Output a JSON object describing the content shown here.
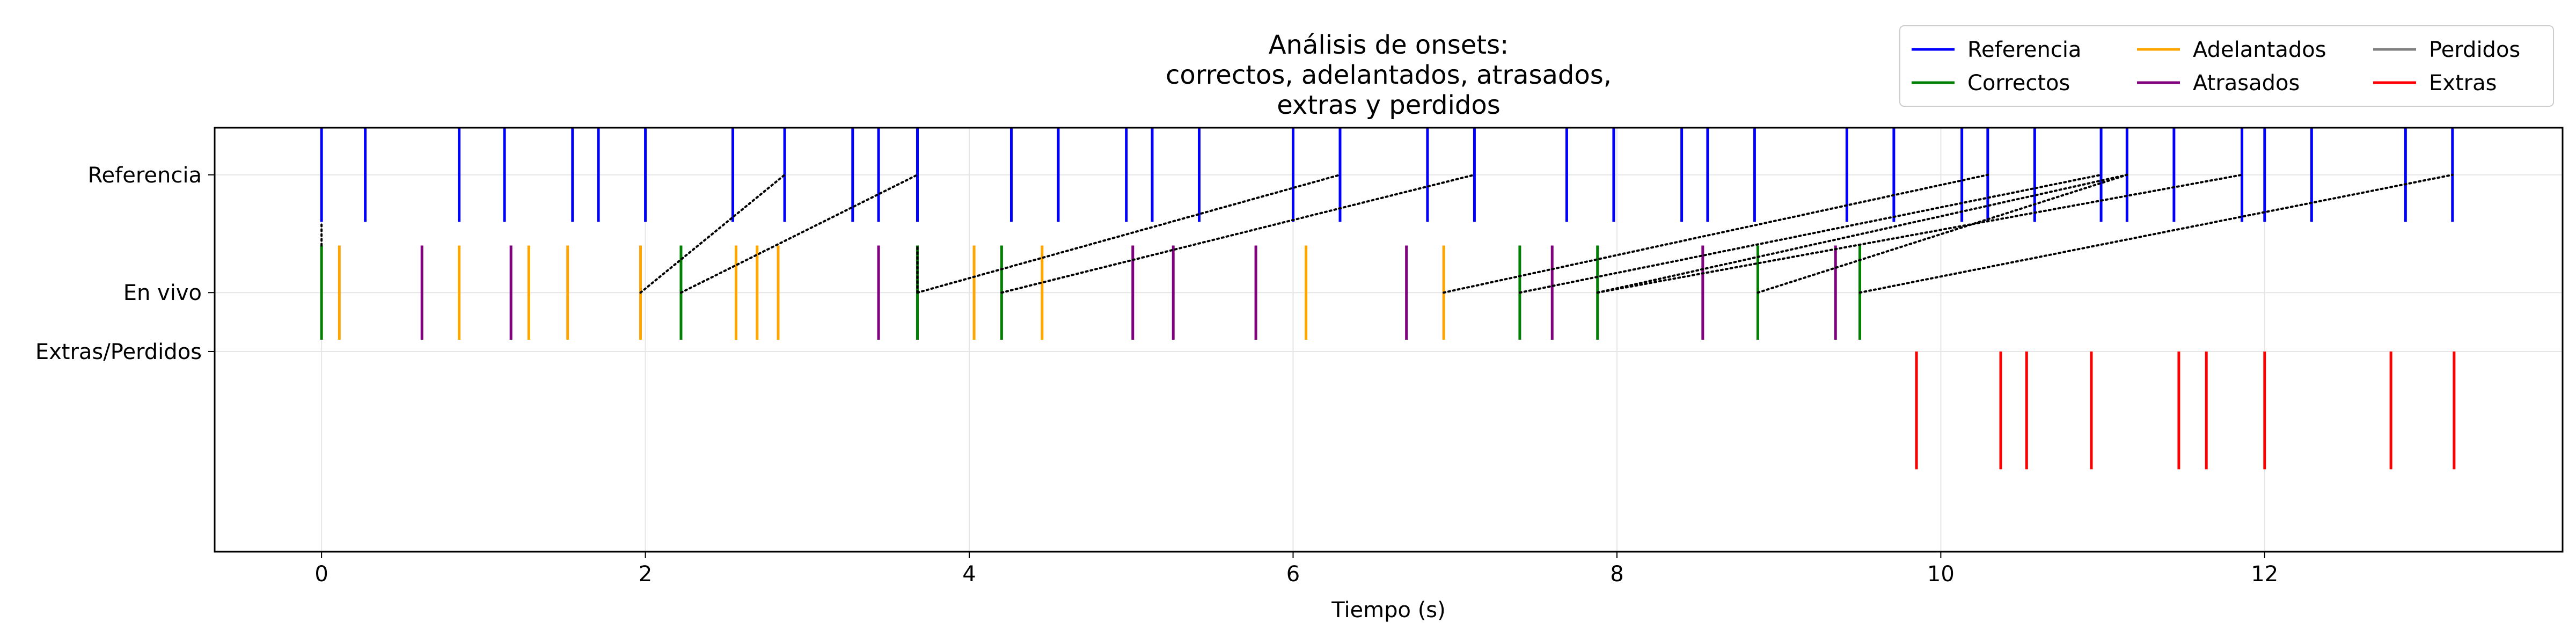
{
  "chart_data": {
    "type": "event-plot",
    "title": [
      "Análisis de onsets:",
      "correctos, adelantados, atrasados,",
      "extras y perdidos"
    ],
    "xlabel": "Tiempo (s)",
    "ylabel": "",
    "xlim": [
      -0.66,
      13.84
    ],
    "ylim": [
      -0.6,
      1.2
    ],
    "x_ticks": [
      0,
      2,
      4,
      6,
      8,
      10,
      12
    ],
    "y_ticks": [
      {
        "value": 1.0,
        "label": "Referencia"
      },
      {
        "value": 0.5,
        "label": "En vivo"
      },
      {
        "value": 0.25,
        "label": "Extras/Perdidos"
      }
    ],
    "grid": true,
    "legend_position": "top-right",
    "legend": [
      {
        "label": "Referencia",
        "color": "#0000ff"
      },
      {
        "label": "Correctos",
        "color": "#008000"
      },
      {
        "label": "Adelantados",
        "color": "#ffa500"
      },
      {
        "label": "Atrasados",
        "color": "#800080"
      },
      {
        "label": "Perdidos",
        "color": "#808080"
      },
      {
        "label": "Extras",
        "color": "#ff0000"
      }
    ],
    "series": [
      {
        "name": "Referencia",
        "color": "#0000ff",
        "y_range": [
          0.8,
          1.2
        ],
        "x": [
          0.0,
          0.27,
          0.85,
          1.13,
          1.55,
          1.71,
          2.0,
          2.54,
          2.86,
          3.28,
          3.44,
          3.68,
          4.26,
          4.55,
          4.97,
          5.13,
          5.42,
          6.0,
          6.29,
          6.83,
          7.12,
          7.69,
          7.98,
          8.4,
          8.56,
          8.85,
          9.42,
          9.71,
          10.13,
          10.29,
          10.58,
          10.99,
          11.15,
          11.44,
          11.86,
          12.0,
          12.29,
          12.87,
          13.16
        ]
      },
      {
        "name": "Correctos",
        "color": "#008000",
        "y_range": [
          0.3,
          0.7
        ],
        "x": [
          0.0,
          2.22,
          3.68,
          4.2,
          7.4,
          7.88,
          8.87,
          9.5
        ]
      },
      {
        "name": "Adelantados",
        "color": "#ffa500",
        "y_range": [
          0.3,
          0.7
        ],
        "x": [
          0.11,
          0.85,
          1.28,
          1.52,
          1.97,
          2.56,
          2.69,
          2.82,
          4.03,
          4.45,
          6.08,
          6.93
        ]
      },
      {
        "name": "Atrasados",
        "color": "#800080",
        "y_range": [
          0.3,
          0.7
        ],
        "x": [
          0.62,
          1.17,
          3.44,
          5.01,
          5.26,
          5.77,
          6.7,
          7.6,
          8.53,
          9.35
        ]
      },
      {
        "name": "Extras",
        "color": "#ff0000",
        "y_range": [
          -0.25,
          0.25
        ],
        "x": [
          9.85,
          10.37,
          10.53,
          10.93,
          11.47,
          11.64,
          12.0,
          12.78,
          13.17
        ]
      }
    ],
    "connections": [
      {
        "from": [
          0.0,
          0.7
        ],
        "to": [
          0.0,
          0.8
        ]
      },
      {
        "from": [
          1.97,
          0.5
        ],
        "to": [
          2.86,
          1.0
        ]
      },
      {
        "from": [
          2.22,
          0.5
        ],
        "to": [
          3.68,
          1.0
        ]
      },
      {
        "from": [
          3.68,
          0.5
        ],
        "to": [
          6.29,
          1.0
        ]
      },
      {
        "from": [
          4.2,
          0.5
        ],
        "to": [
          7.12,
          1.0
        ]
      },
      {
        "from": [
          6.93,
          0.5
        ],
        "to": [
          10.29,
          1.0
        ]
      },
      {
        "from": [
          7.4,
          0.5
        ],
        "to": [
          10.99,
          1.0
        ]
      },
      {
        "from": [
          7.88,
          0.5
        ],
        "to": [
          11.15,
          1.0
        ]
      },
      {
        "from": [
          7.88,
          0.5
        ],
        "to": [
          11.86,
          1.0
        ]
      },
      {
        "from": [
          8.87,
          0.5
        ],
        "to": [
          11.15,
          1.0
        ]
      },
      {
        "from": [
          9.5,
          0.5
        ],
        "to": [
          13.16,
          1.0
        ]
      },
      {
        "from": [
          3.68,
          0.5
        ],
        "to": [
          3.68,
          0.7
        ]
      }
    ]
  }
}
